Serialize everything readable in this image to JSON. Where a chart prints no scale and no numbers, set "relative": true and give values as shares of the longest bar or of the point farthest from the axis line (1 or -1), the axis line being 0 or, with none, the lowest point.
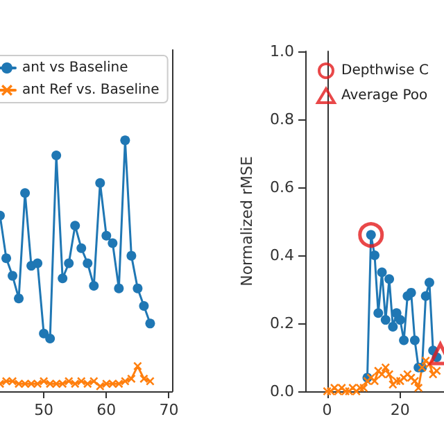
{
  "chart_data": [
    {
      "type": "line",
      "relative": true,
      "legend": "top left",
      "xlim": [
        43,
        70.5
      ],
      "xticks": [
        50,
        60,
        70
      ],
      "x": [
        43,
        44,
        45,
        46,
        47,
        48,
        49,
        50,
        51,
        52,
        53,
        54,
        55,
        56,
        57,
        58,
        59,
        60,
        61,
        62,
        63,
        64,
        65,
        66,
        67
      ],
      "series": [
        {
          "name": "ant vs Baseline",
          "color": "#1f77b4",
          "marker": "circle",
          "values": [
            0.7,
            0.53,
            0.46,
            0.37,
            0.79,
            0.5,
            0.51,
            0.23,
            0.21,
            0.94,
            0.45,
            0.51,
            0.66,
            0.57,
            0.51,
            0.42,
            0.83,
            0.62,
            0.59,
            0.41,
            1.0,
            0.54,
            0.41,
            0.34,
            0.27
          ]
        },
        {
          "name": "ant Ref vs. Baseline",
          "color": "#ff7f0e",
          "marker": "cross",
          "values": [
            0.03,
            0.04,
            0.04,
            0.03,
            0.03,
            0.03,
            0.03,
            0.04,
            0.03,
            0.03,
            0.03,
            0.04,
            0.03,
            0.04,
            0.03,
            0.04,
            0.02,
            0.03,
            0.03,
            0.03,
            0.04,
            0.05,
            0.1,
            0.05,
            0.04
          ]
        }
      ]
    },
    {
      "type": "line",
      "ylabel": "Normalized rMSE",
      "legend": "top left",
      "xlim": [
        -6,
        32
      ],
      "xticks": [
        0,
        20
      ],
      "ylim": [
        0,
        1
      ],
      "yticks": [
        {
          "value": 0,
          "label": "0.0"
        },
        {
          "value": 0.2,
          "label": "0.2"
        },
        {
          "value": 0.4,
          "label": "0.4"
        },
        {
          "value": 0.6,
          "label": "0.6"
        },
        {
          "value": 0.8,
          "label": "0.8"
        },
        {
          "value": 1,
          "label": "1.0"
        }
      ],
      "series": [
        {
          "color": "#1f77b4",
          "marker": "circle",
          "x": [
            11,
            12,
            13,
            14,
            15,
            16,
            17,
            18,
            19,
            20,
            21,
            22,
            23,
            24,
            25,
            26,
            27,
            28,
            29,
            30
          ],
          "values": [
            0.04,
            0.46,
            0.4,
            0.23,
            0.35,
            0.21,
            0.33,
            0.19,
            0.23,
            0.21,
            0.15,
            0.28,
            0.29,
            0.15,
            0.07,
            0.07,
            0.28,
            0.32,
            0.12,
            0.1
          ]
        },
        {
          "color": "#ff7f0e",
          "marker": "cross",
          "x": [
            0,
            1,
            2,
            3,
            4,
            5,
            6,
            7,
            8,
            9,
            10,
            11,
            12,
            13,
            14,
            15,
            16,
            17,
            18,
            19,
            20,
            21,
            22,
            23,
            24,
            25,
            26,
            27,
            28,
            29,
            30
          ],
          "values": [
            0.0,
            0.0,
            0.01,
            0.0,
            0.01,
            0.0,
            0.0,
            0.01,
            0.0,
            0.01,
            0.01,
            0.03,
            0.04,
            0.03,
            0.06,
            0.05,
            0.07,
            0.05,
            0.02,
            0.03,
            0.03,
            0.04,
            0.05,
            0.04,
            0.03,
            0.01,
            0.07,
            0.09,
            0.08,
            0.05,
            0.06
          ]
        },
        {
          "type": "scatter",
          "name": "Depthwise C",
          "color": "#e31a1c",
          "marker": "circle",
          "x": [
            12
          ],
          "values": [
            0.46
          ]
        },
        {
          "type": "scatter",
          "name": "Average Poo",
          "color": "#e31a1c",
          "marker": "triangle",
          "x": [
            31
          ],
          "values": [
            0.11
          ]
        }
      ]
    }
  ]
}
